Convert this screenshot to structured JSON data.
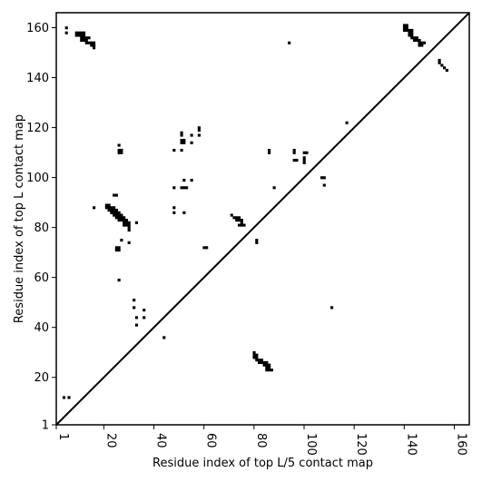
{
  "chart_data": {
    "type": "heatmap",
    "xlabel": "Residue index of top L/5 contact map",
    "ylabel": "Residue index of top L contact map",
    "xlim": [
      1,
      166
    ],
    "ylim": [
      1,
      166
    ],
    "xticks": [
      1,
      20,
      40,
      60,
      80,
      100,
      120,
      140,
      160
    ],
    "yticks": [
      1,
      20,
      40,
      60,
      80,
      100,
      120,
      140,
      160
    ],
    "diagonal": true,
    "cell_color": "#000000",
    "lower_cells": [
      [
        140,
        159
      ],
      [
        141,
        159
      ],
      [
        140,
        160
      ],
      [
        141,
        160
      ],
      [
        140,
        161
      ],
      [
        141,
        161
      ],
      [
        142,
        157
      ],
      [
        143,
        157
      ],
      [
        142,
        158
      ],
      [
        143,
        158
      ],
      [
        142,
        159
      ],
      [
        143,
        159
      ],
      [
        143,
        156
      ],
      [
        144,
        156
      ],
      [
        145,
        156
      ],
      [
        144,
        155
      ],
      [
        145,
        155
      ],
      [
        146,
        155
      ],
      [
        146,
        154
      ],
      [
        147,
        154
      ],
      [
        146,
        153
      ],
      [
        147,
        153
      ],
      [
        148,
        154
      ],
      [
        154,
        146
      ],
      [
        154,
        147
      ],
      [
        155,
        145
      ],
      [
        156,
        144
      ],
      [
        157,
        143
      ],
      [
        117,
        122
      ],
      [
        80,
        28
      ],
      [
        81,
        28
      ],
      [
        80,
        29
      ],
      [
        81,
        29
      ],
      [
        80,
        30
      ],
      [
        81,
        27
      ],
      [
        82,
        27
      ],
      [
        83,
        27
      ],
      [
        82,
        26
      ],
      [
        83,
        26
      ],
      [
        84,
        26
      ],
      [
        85,
        26
      ],
      [
        84,
        25
      ],
      [
        85,
        25
      ],
      [
        86,
        25
      ],
      [
        85,
        24
      ],
      [
        86,
        24
      ],
      [
        85,
        23
      ],
      [
        86,
        23
      ],
      [
        87,
        23
      ],
      [
        111,
        48
      ]
    ],
    "upper_cells": [
      [
        5,
        158
      ],
      [
        5,
        160
      ],
      [
        9,
        157
      ],
      [
        10,
        157
      ],
      [
        11,
        157
      ],
      [
        12,
        157
      ],
      [
        9,
        158
      ],
      [
        10,
        158
      ],
      [
        11,
        158
      ],
      [
        12,
        158
      ],
      [
        11,
        155
      ],
      [
        12,
        155
      ],
      [
        13,
        155
      ],
      [
        11,
        156
      ],
      [
        12,
        156
      ],
      [
        13,
        156
      ],
      [
        14,
        156
      ],
      [
        13,
        154
      ],
      [
        14,
        154
      ],
      [
        15,
        154
      ],
      [
        15,
        153
      ],
      [
        16,
        153
      ],
      [
        16,
        154
      ],
      [
        16,
        152
      ],
      [
        94,
        154
      ],
      [
        26,
        113
      ],
      [
        26,
        111
      ],
      [
        27,
        111
      ],
      [
        26,
        110
      ],
      [
        27,
        110
      ],
      [
        51,
        115
      ],
      [
        52,
        115
      ],
      [
        51,
        114
      ],
      [
        52,
        114
      ],
      [
        51,
        117
      ],
      [
        51,
        118
      ],
      [
        55,
        114
      ],
      [
        55,
        117
      ],
      [
        58,
        117
      ],
      [
        58,
        119
      ],
      [
        58,
        120
      ],
      [
        48,
        111
      ],
      [
        51,
        111
      ],
      [
        86,
        111
      ],
      [
        86,
        110
      ],
      [
        96,
        110
      ],
      [
        96,
        111
      ],
      [
        100,
        110
      ],
      [
        101,
        110
      ],
      [
        96,
        107
      ],
      [
        97,
        107
      ],
      [
        100,
        106
      ],
      [
        100,
        107
      ],
      [
        100,
        108
      ],
      [
        107,
        100
      ],
      [
        108,
        100
      ],
      [
        108,
        97
      ],
      [
        88,
        96
      ],
      [
        48,
        96
      ],
      [
        51,
        96
      ],
      [
        52,
        96
      ],
      [
        53,
        96
      ],
      [
        52,
        99
      ],
      [
        55,
        99
      ],
      [
        24,
        93
      ],
      [
        25,
        93
      ],
      [
        16,
        88
      ],
      [
        21,
        89
      ],
      [
        22,
        89
      ],
      [
        21,
        88
      ],
      [
        22,
        88
      ],
      [
        23,
        88
      ],
      [
        24,
        88
      ],
      [
        22,
        87
      ],
      [
        23,
        87
      ],
      [
        24,
        87
      ],
      [
        25,
        87
      ],
      [
        23,
        86
      ],
      [
        24,
        86
      ],
      [
        25,
        86
      ],
      [
        26,
        86
      ],
      [
        24,
        85
      ],
      [
        25,
        85
      ],
      [
        26,
        85
      ],
      [
        27,
        85
      ],
      [
        25,
        84
      ],
      [
        26,
        84
      ],
      [
        27,
        84
      ],
      [
        28,
        84
      ],
      [
        26,
        83
      ],
      [
        27,
        83
      ],
      [
        28,
        83
      ],
      [
        29,
        83
      ],
      [
        28,
        82
      ],
      [
        29,
        82
      ],
      [
        30,
        82
      ],
      [
        28,
        81
      ],
      [
        29,
        81
      ],
      [
        30,
        81
      ],
      [
        30,
        80
      ],
      [
        30,
        79
      ],
      [
        33,
        82
      ],
      [
        48,
        88
      ],
      [
        48,
        86
      ],
      [
        52,
        86
      ],
      [
        71,
        85
      ],
      [
        72,
        84
      ],
      [
        73,
        84
      ],
      [
        74,
        84
      ],
      [
        73,
        83
      ],
      [
        74,
        83
      ],
      [
        75,
        83
      ],
      [
        75,
        82
      ],
      [
        74,
        81
      ],
      [
        75,
        81
      ],
      [
        76,
        81
      ],
      [
        81,
        75
      ],
      [
        81,
        74
      ],
      [
        27,
        75
      ],
      [
        30,
        74
      ],
      [
        25,
        72
      ],
      [
        26,
        72
      ],
      [
        25,
        71
      ],
      [
        26,
        71
      ],
      [
        60,
        72
      ],
      [
        61,
        72
      ],
      [
        26,
        59
      ],
      [
        32,
        51
      ],
      [
        32,
        48
      ],
      [
        36,
        47
      ],
      [
        33,
        44
      ],
      [
        36,
        44
      ],
      [
        33,
        41
      ],
      [
        44,
        36
      ],
      [
        4,
        12
      ],
      [
        6,
        12
      ]
    ]
  }
}
